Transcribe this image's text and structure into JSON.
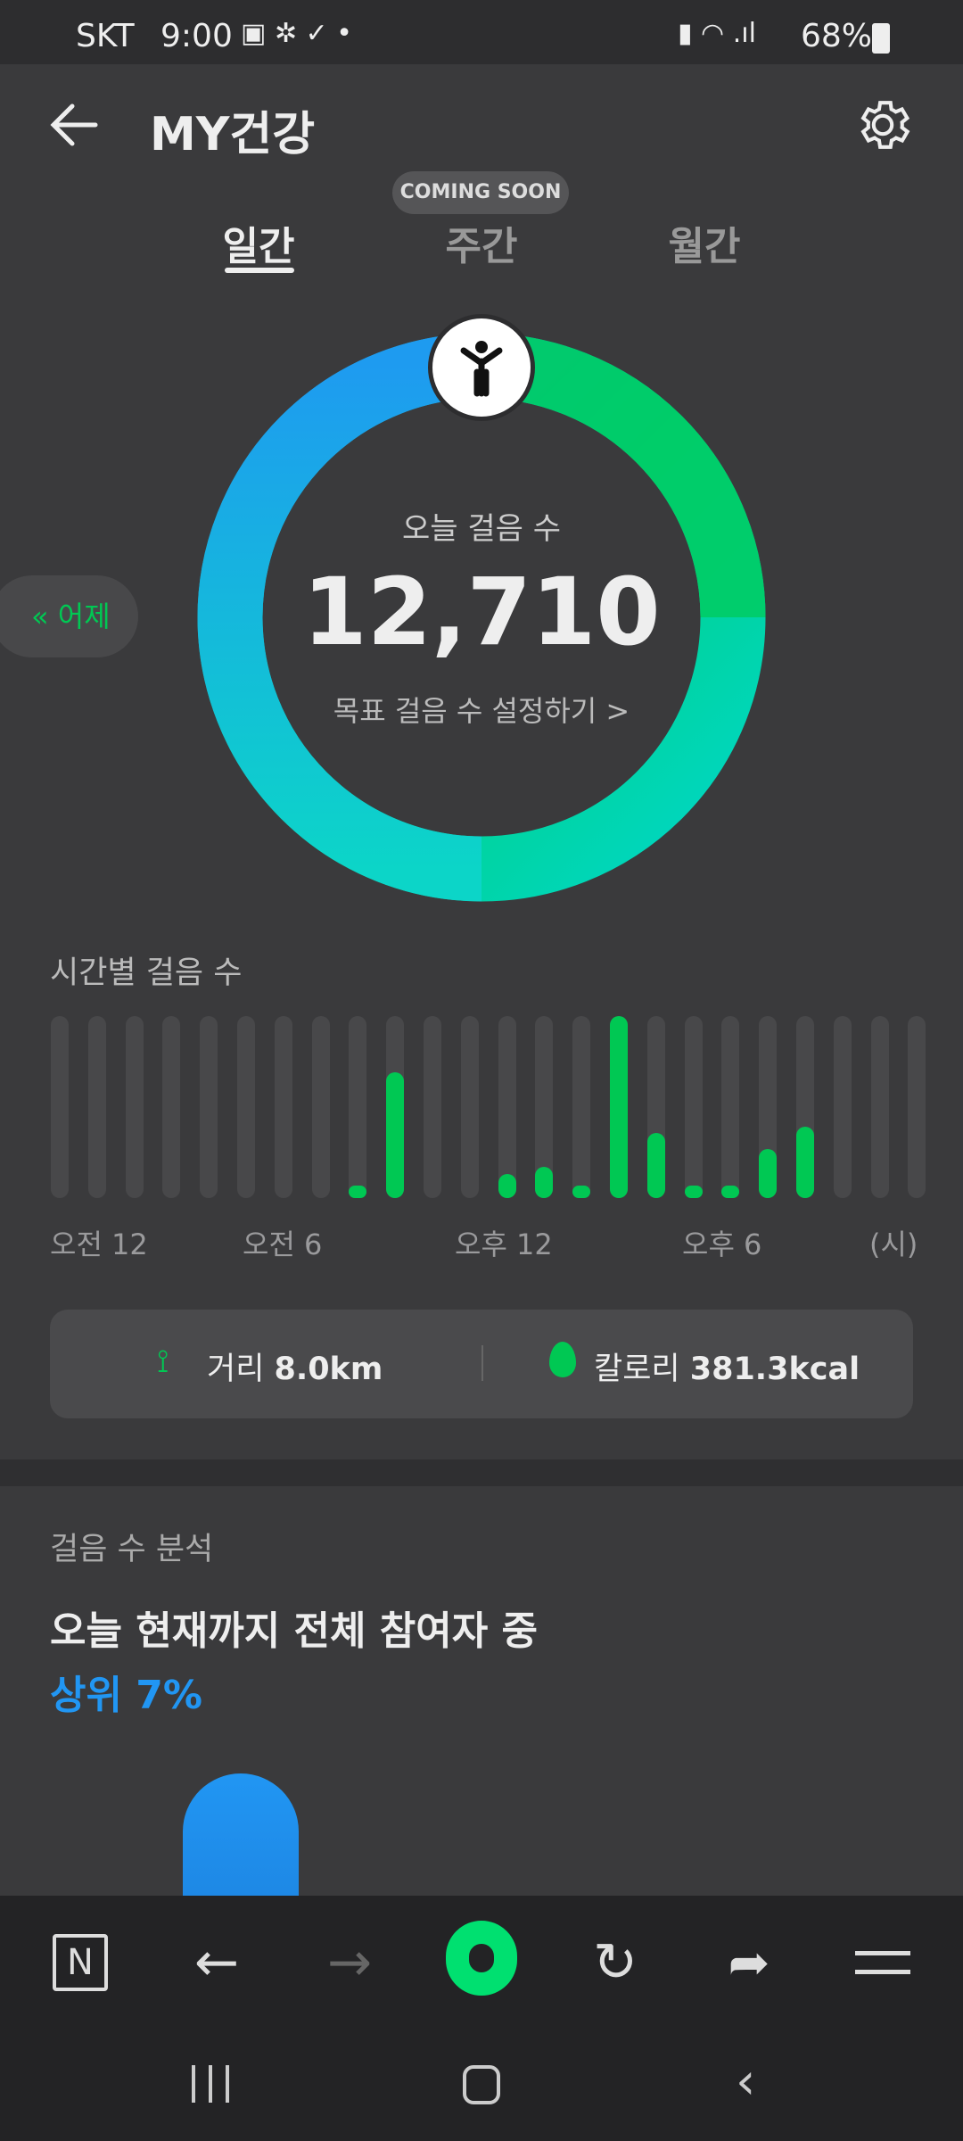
{
  "status_bar": {
    "carrier": "SKT",
    "time": "9:00",
    "battery": "68%",
    "icons": [
      "gallery-icon",
      "sol-pay-icon",
      "volte-icon",
      "dot-icon",
      "battery-saver-icon",
      "wifi-icon",
      "signal-icon",
      "battery-icon"
    ]
  },
  "header": {
    "title": "MY건강",
    "back_icon": "arrow-left-icon",
    "settings_icon": "gear-icon"
  },
  "tabs": [
    {
      "label": "일간",
      "active": true
    },
    {
      "label": "주간",
      "active": false
    },
    {
      "label": "월간",
      "active": false
    }
  ],
  "coming_soon": "COMING SOON",
  "ring": {
    "label": "오늘 걸음 수",
    "steps": "12,710",
    "goal_link": "목표 걸음 수 설정하기 >",
    "colors": [
      "#1e9bf0",
      "#00d084",
      "#00ccc0"
    ]
  },
  "yesterday_button": "« 어제",
  "hourly": {
    "title": "시간별 걸음 수",
    "x_labels": [
      "오전 12",
      "오전 6",
      "오후 12",
      "오후 6",
      "(시)"
    ],
    "chart_data": {
      "type": "bar",
      "categories": [
        "0",
        "1",
        "2",
        "3",
        "4",
        "5",
        "6",
        "7",
        "8",
        "9",
        "10",
        "11",
        "12",
        "13",
        "14",
        "15",
        "16",
        "17",
        "18",
        "19",
        "20",
        "21",
        "22",
        "23"
      ],
      "values": [
        0,
        0,
        0,
        0,
        0,
        0,
        0,
        0,
        0.07,
        0.69,
        0,
        0,
        0.13,
        0.17,
        0.06,
        1.0,
        0.36,
        0.06,
        0.05,
        0.27,
        0.39,
        0,
        0,
        0
      ],
      "color": "#00c853"
    }
  },
  "summary": {
    "distance_label": "거리",
    "distance_value": "8.0km",
    "calorie_label": "칼로리",
    "calorie_value": "381.3kcal"
  },
  "analysis": {
    "title": "걸음 수 분석",
    "headline": "오늘 현재까지 전체 참여자 중",
    "rank": "상위 7%",
    "accent": "#2196f3"
  },
  "toolbar": [
    "naver-home-icon",
    "back-icon",
    "forward-icon",
    "green-dot-icon",
    "refresh-icon",
    "share-icon",
    "menu-icon"
  ],
  "nav": [
    "recents-icon",
    "home-icon",
    "back-icon"
  ]
}
